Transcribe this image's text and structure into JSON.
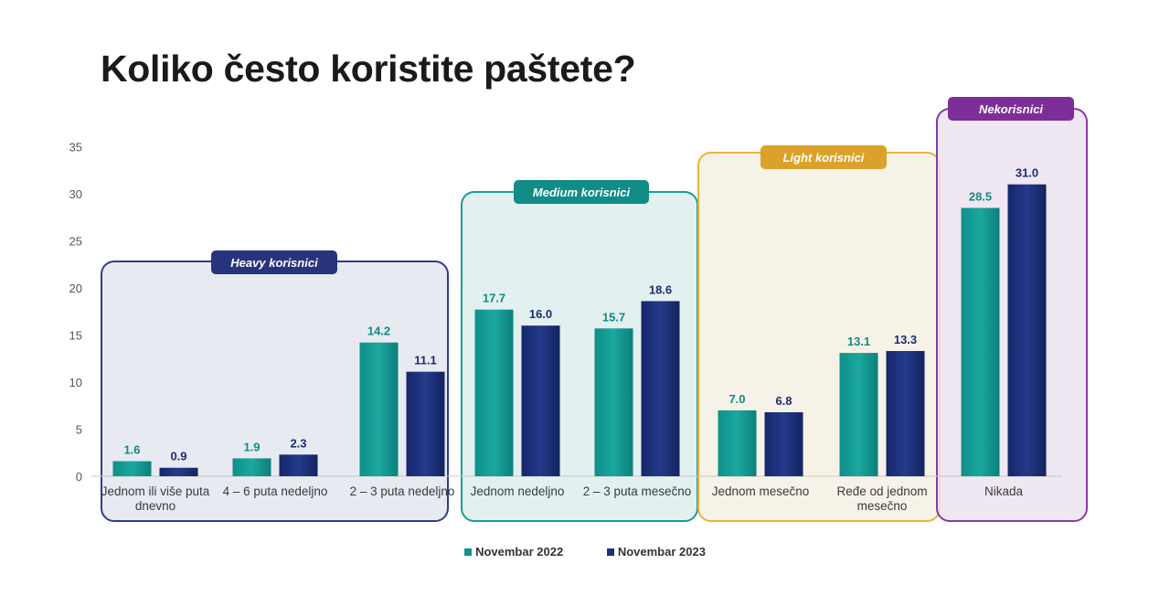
{
  "title": "Koliko često koristite paštete?",
  "chart_data": {
    "type": "bar",
    "ylim": [
      0,
      35
    ],
    "yticks": [
      0,
      5,
      10,
      15,
      20,
      25,
      30,
      35
    ],
    "grid": false,
    "legend_position": "bottom",
    "categories": [
      [
        "Jednom ili više puta",
        "dnevno"
      ],
      [
        "4 – 6 puta nedeljno"
      ],
      [
        "2 – 3 puta nedeljno"
      ],
      [
        "Jednom nedeljno"
      ],
      [
        "2 – 3 puta mesečno"
      ],
      [
        "Jednom mesečno"
      ],
      [
        "Ređe od jednom",
        "mesečno"
      ],
      [
        "Nikada"
      ]
    ],
    "series": [
      {
        "name": "Novembar 2022",
        "color": "#12918c",
        "values": [
          1.6,
          1.9,
          14.2,
          17.7,
          15.7,
          7.0,
          13.1,
          28.5
        ]
      },
      {
        "name": "Novembar 2023",
        "color": "#1c2f78",
        "values": [
          0.9,
          2.3,
          11.1,
          16.0,
          18.6,
          6.8,
          13.3,
          31.0
        ]
      }
    ],
    "groups": [
      {
        "label": "Heavy korisnici",
        "categories": [
          0,
          1,
          2
        ],
        "border": "#2f3c8f",
        "fill": "#e4e6f0",
        "label_bg": "#27347d"
      },
      {
        "label": "Medium korisnici",
        "categories": [
          3,
          4
        ],
        "border": "#1a9c95",
        "fill": "#ddeeed",
        "label_bg": "#0f8d86"
      },
      {
        "label": "Light korisnici",
        "categories": [
          5,
          6
        ],
        "border": "#e6b43a",
        "fill": "#f6f0e4",
        "label_bg": "#dba22b"
      },
      {
        "label": "Nekorisnici",
        "categories": [
          7
        ],
        "border": "#8a3aa5",
        "fill": "#ece3f0",
        "label_bg": "#7d2e98"
      }
    ]
  }
}
